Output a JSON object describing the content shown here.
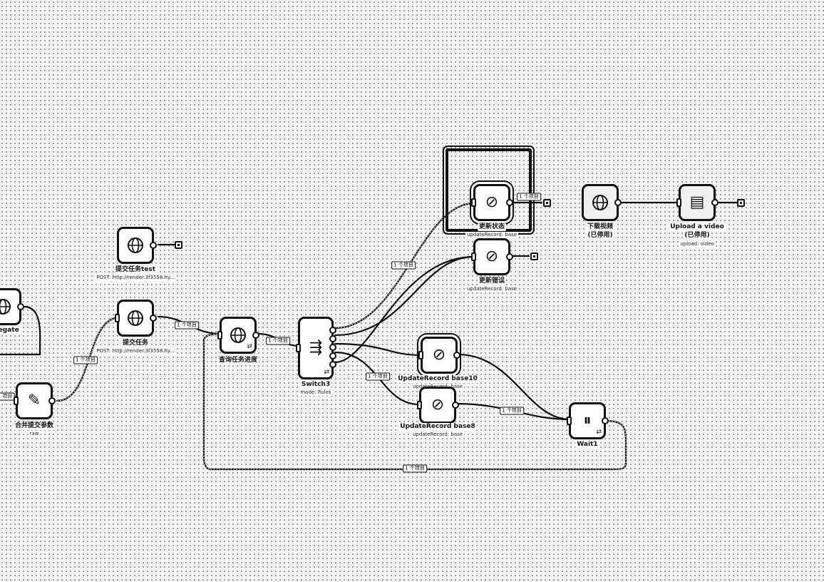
{
  "canvas": {
    "nodes": {
      "aggregate": {
        "label": "regate"
      },
      "submit_test": {
        "label": "提交任务test",
        "sub": "POST: http://render.3f3558.hy..."
      },
      "submit": {
        "label": "提交任务",
        "sub": "POST: http://render.3f3558.hy..."
      },
      "merge": {
        "label": "合并提交参数",
        "sub": "raw"
      },
      "query": {
        "label": "查询任务进度"
      },
      "switch": {
        "label": "Switch3",
        "sub": "mode: Rules"
      },
      "update_a": {
        "label": "更新状态",
        "sub": "updateRecord: base"
      },
      "update_b": {
        "label": "更新错误",
        "sub": "updateRecord: base"
      },
      "update_10": {
        "label": "UpdateRecord base10",
        "sub": "updateRecord: base"
      },
      "update_8": {
        "label": "UpdateRecord base8",
        "sub": "updateRecord: base"
      },
      "wait": {
        "label": "Wait1"
      },
      "download": {
        "label": "下载视频",
        "label2": "(已停用)"
      },
      "upload": {
        "label": "Upload a video",
        "label2": "(已停用)",
        "sub": "upload: video"
      }
    },
    "edge_labels": {
      "left_items": "1 项目",
      "merge_to_submit": "1 个项目",
      "submit_to_query": "1 个项目",
      "query_to_switch": "1 个项目",
      "switch_to_update_a": "1 个项目",
      "switch_to_update8": "1 个项目",
      "update_a_out": "1 个项目",
      "update8_to_wait": "1 个项目",
      "loop_back": "1 个项目"
    },
    "icons": {
      "http": "globe-icon",
      "merge": "pencil-icon",
      "switch": "switch-icon",
      "update": "table-record-icon",
      "wait": "pause-icon",
      "upload": "document-icon"
    }
  }
}
